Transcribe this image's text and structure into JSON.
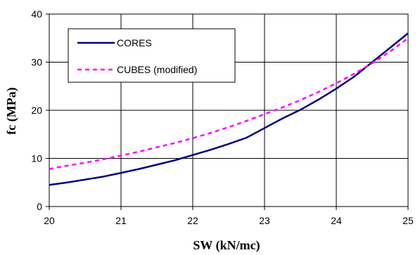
{
  "chart_data": {
    "type": "line",
    "title": "",
    "xlabel": "SW (kN/mc)",
    "ylabel": "fc (MPa)",
    "xlim": [
      20,
      25
    ],
    "ylim": [
      0,
      40
    ],
    "x_ticks": [
      "20",
      "21",
      "22",
      "23",
      "24",
      "25"
    ],
    "y_ticks": [
      "0",
      "10",
      "20",
      "30",
      "40"
    ],
    "grid": true,
    "legend": "upper-left",
    "series": [
      {
        "name": "CORES",
        "color": "#000080",
        "style": "solid",
        "x": [
          20,
          20.25,
          20.5,
          20.75,
          21,
          21.25,
          21.5,
          21.75,
          22,
          22.25,
          22.5,
          22.75,
          23,
          23.25,
          23.5,
          23.75,
          24,
          24.25,
          24.5,
          24.75,
          25
        ],
        "y": [
          4.5,
          5.0,
          5.6,
          6.2,
          7.0,
          7.8,
          8.7,
          9.6,
          10.7,
          11.8,
          13.0,
          14.3,
          16.3,
          18.3,
          20.1,
          22.2,
          24.5,
          27.0,
          30.0,
          33.0,
          36.0
        ]
      },
      {
        "name": "CUBES (modified)",
        "color": "#ff00ff",
        "style": "dashed",
        "x": [
          20,
          20.25,
          20.5,
          20.75,
          21,
          21.25,
          21.5,
          21.75,
          22,
          22.25,
          22.5,
          22.75,
          23,
          23.25,
          23.5,
          23.75,
          24,
          24.25,
          24.5,
          24.75,
          25
        ],
        "y": [
          7.8,
          8.5,
          9.1,
          9.8,
          10.6,
          11.4,
          12.3,
          13.2,
          14.2,
          15.3,
          16.5,
          17.8,
          19.2,
          20.6,
          22.1,
          23.8,
          25.6,
          27.6,
          29.8,
          32.2,
          35.0
        ]
      }
    ]
  }
}
